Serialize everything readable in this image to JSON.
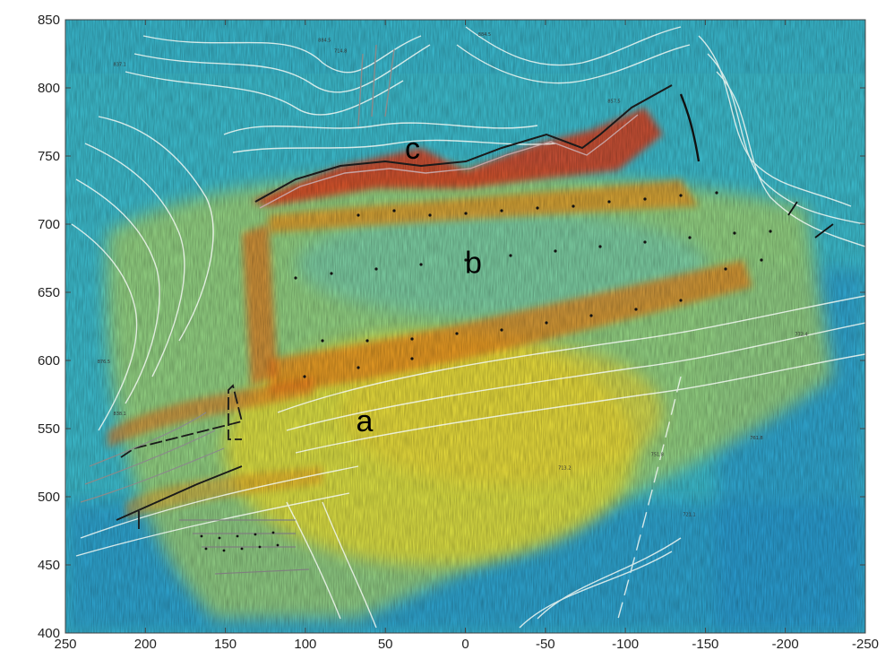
{
  "chart_data": {
    "type": "heatmap",
    "title": "",
    "xlabel": "",
    "ylabel": "",
    "xlim": [
      250,
      -250
    ],
    "ylim": [
      400,
      850
    ],
    "x_ticks": [
      250,
      200,
      150,
      100,
      50,
      0,
      -50,
      -100,
      -150,
      -200,
      -250
    ],
    "y_ticks": [
      400,
      450,
      500,
      550,
      600,
      650,
      700,
      750,
      800,
      850
    ],
    "grid": false,
    "legend": "none",
    "colormap": [
      "#1f9bd6",
      "#35c6d8",
      "#9fe0a0",
      "#f0ee3a",
      "#f7a21c",
      "#e0321a"
    ],
    "region_labels": [
      {
        "text": "a",
        "x": 63,
        "y": 548
      },
      {
        "text": "b",
        "x": -5,
        "y": 664
      },
      {
        "text": "c",
        "x": 33,
        "y": 748
      }
    ],
    "contour_labels": [
      {
        "text": "884.5",
        "x": 88,
        "y": 834
      },
      {
        "text": "884.5",
        "x": -12,
        "y": 838
      },
      {
        "text": "857.5",
        "x": -93,
        "y": 789
      },
      {
        "text": "837.1",
        "x": 216,
        "y": 816
      },
      {
        "text": "714.8",
        "x": 78,
        "y": 826
      },
      {
        "text": "713.2",
        "x": -62,
        "y": 520
      },
      {
        "text": "721.1",
        "x": -140,
        "y": 486
      },
      {
        "text": "772.4",
        "x": -210,
        "y": 618
      },
      {
        "text": "761.8",
        "x": -182,
        "y": 542
      },
      {
        "text": "751.8",
        "x": -120,
        "y": 530
      },
      {
        "text": "876.5",
        "x": 226,
        "y": 598
      },
      {
        "text": "838.1",
        "x": 216,
        "y": 560
      }
    ]
  }
}
